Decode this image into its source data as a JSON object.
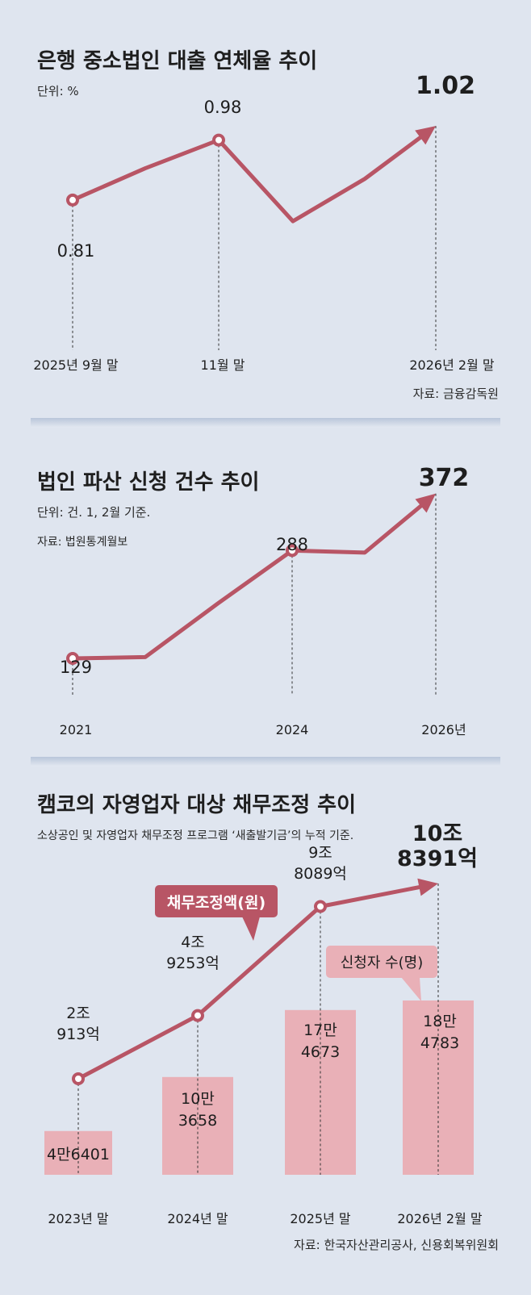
{
  "chart_data": [
    {
      "type": "line",
      "title": "은행 중소법인 대출 연체율 추이",
      "unit": "단위: %",
      "source": "자료: 금융감독원",
      "x_labels": [
        "2025년 9월 말",
        "11월 말",
        "2026년 2월 말"
      ],
      "series": [
        {
          "values": [
            0.81,
            0.9,
            0.98,
            0.75,
            0.87,
            1.02
          ]
        }
      ],
      "value_labels": [
        "0.81",
        "0.98",
        "1.02"
      ],
      "ylim": [
        0.7,
        1.05
      ],
      "grid": false,
      "color": "#b85565"
    },
    {
      "type": "line",
      "title": "법인 파산 신청 건수 추이",
      "unit": "단위: 건. 1, 2월 기준.",
      "source": "자료: 법원통계월보",
      "x_labels": [
        "2021",
        "2024",
        "2026년"
      ],
      "series": [
        {
          "values": [
            129,
            131,
            210,
            288,
            285,
            372
          ]
        }
      ],
      "value_labels": [
        "129",
        "288",
        "372"
      ],
      "ylim": [
        110,
        380
      ],
      "grid": false,
      "color": "#b85565"
    },
    {
      "type": "bar",
      "title": "캠코의 자영업자 대상 채무조정 추이",
      "subtitle": "소상공인 및 자영업자 채무조정 프로그램 ‘새출발기금’의 누적 기준.",
      "source": "자료: 한국자산관리공사, 신용회복위원회",
      "categories": [
        "2023년 말",
        "2024년 말",
        "2025년 말",
        "2026년 2월 말"
      ],
      "series": [
        {
          "name": "채무조정액(원)",
          "type": "line",
          "values_eok": [
            20913,
            49253,
            98089,
            108391
          ],
          "labels": [
            [
              "2조",
              "913억"
            ],
            [
              "4조",
              "9253억"
            ],
            [
              "9조",
              "8089억"
            ],
            [
              "10조",
              "8391억"
            ]
          ]
        },
        {
          "name": "신청자 수(명)",
          "type": "bar",
          "values": [
            46401,
            103658,
            174673,
            184783
          ],
          "labels": [
            [
              "4만6401"
            ],
            [
              "10만",
              "3658"
            ],
            [
              "17만",
              "4673"
            ],
            [
              "18만",
              "4783"
            ]
          ]
        }
      ],
      "line_color": "#b85565",
      "bar_color": "#e9b0b7"
    }
  ]
}
